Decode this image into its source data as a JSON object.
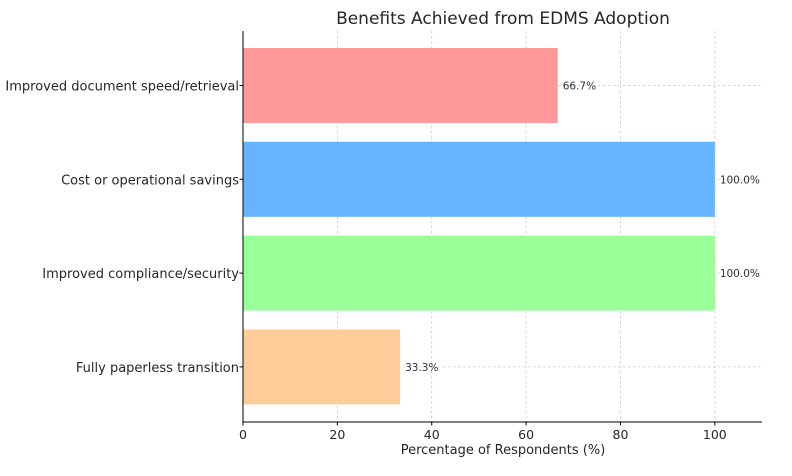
{
  "chart_data": {
    "type": "bar",
    "orientation": "horizontal",
    "title": "Benefits Achieved from EDMS Adoption",
    "xlabel": "Percentage of Respondents (%)",
    "ylabel": "",
    "xlim": [
      0,
      110
    ],
    "xticks": [
      0,
      20,
      40,
      60,
      80,
      100
    ],
    "xtick_labels": [
      "0",
      "20",
      "40",
      "60",
      "80",
      "100"
    ],
    "grid": true,
    "categories": [
      "Improved document speed/retrieval",
      "Cost or operational savings",
      "Improved compliance/security",
      "Fully paperless transition"
    ],
    "values": [
      66.7,
      100.0,
      100.0,
      33.3
    ],
    "data_labels": [
      "66.7%",
      "100.0%",
      "100.0%",
      "33.3%"
    ],
    "colors": [
      "#ff9999",
      "#66b3ff",
      "#99ff99",
      "#ffcc99"
    ]
  }
}
